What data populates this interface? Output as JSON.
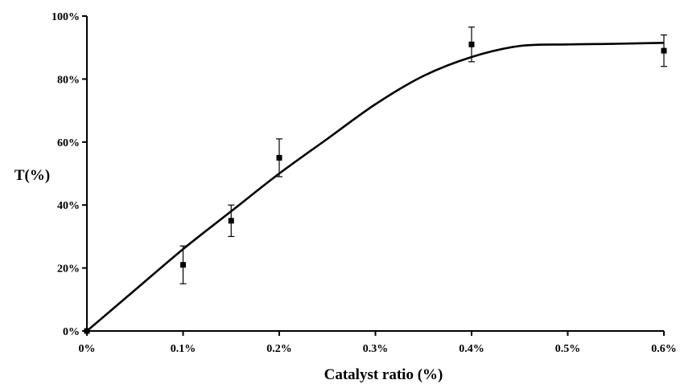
{
  "chart_data": {
    "type": "scatter",
    "title": "",
    "xlabel": "Catalyst ratio (%)",
    "ylabel": "T(%)",
    "xlim": [
      0,
      0.6
    ],
    "ylim": [
      0,
      100
    ],
    "x_ticks": [
      0,
      0.1,
      0.2,
      0.3,
      0.4,
      0.5,
      0.6
    ],
    "x_tick_labels": [
      "0%",
      "0.1%",
      "0.2%",
      "0.3%",
      "0.4%",
      "0.5%",
      "0.6%"
    ],
    "y_ticks": [
      0,
      20,
      40,
      60,
      80,
      100
    ],
    "y_tick_labels": [
      "0%",
      "20%",
      "40%",
      "60%",
      "80%",
      "100%"
    ],
    "grid": false,
    "legend": "none",
    "series": [
      {
        "kind": "points_with_error_bars",
        "x": [
          0,
          0.1,
          0.15,
          0.2,
          0.4,
          0.6
        ],
        "y": [
          0,
          21,
          35,
          55,
          91,
          89
        ],
        "yerr": [
          0,
          6,
          5,
          6,
          5.5,
          5
        ]
      },
      {
        "kind": "fitted_curve",
        "x": [
          0,
          0.05,
          0.1,
          0.15,
          0.2,
          0.25,
          0.3,
          0.35,
          0.4,
          0.45,
          0.5,
          0.55,
          0.6
        ],
        "y": [
          0,
          13,
          26,
          38,
          50,
          61,
          72,
          81,
          87,
          90.5,
          91,
          91.2,
          91.5
        ]
      }
    ]
  }
}
